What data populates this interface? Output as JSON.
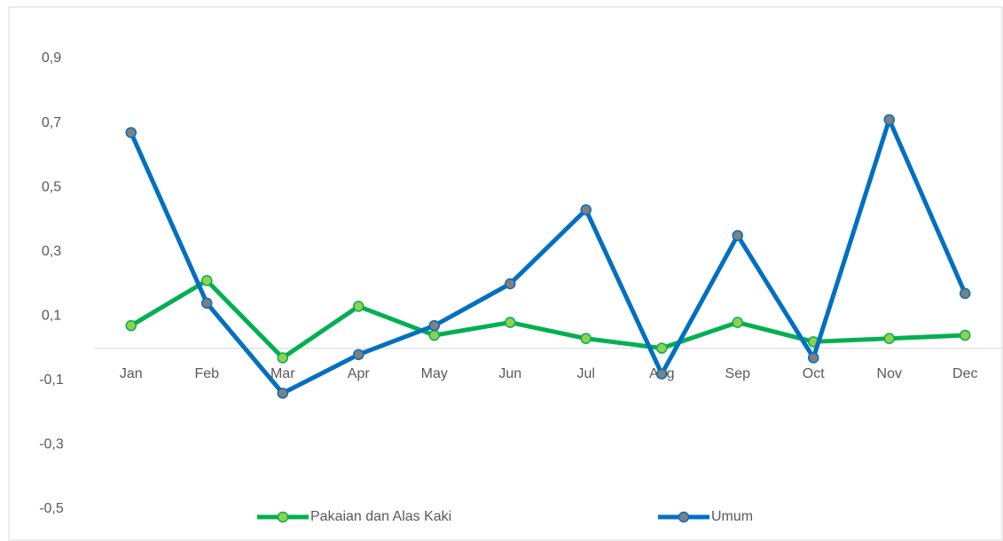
{
  "chart_data": {
    "type": "line",
    "categories": [
      "Jan",
      "Feb",
      "Mar",
      "Apr",
      "May",
      "Jun",
      "Jul",
      "Aug",
      "Sep",
      "Oct",
      "Nov",
      "Dec"
    ],
    "series": [
      {
        "name": "Pakaian dan Alas Kaki",
        "color": "#00b050",
        "marker_color": "#92d050",
        "values": [
          0.07,
          0.21,
          -0.03,
          0.13,
          0.04,
          0.08,
          0.03,
          0.0,
          0.08,
          0.02,
          0.03,
          0.04
        ]
      },
      {
        "name": "Umum",
        "color": "#0070c0",
        "marker_color": "#7f7f7f",
        "values": [
          0.67,
          0.14,
          -0.14,
          -0.02,
          0.07,
          0.2,
          0.43,
          -0.08,
          0.35,
          -0.03,
          0.71,
          0.17
        ]
      }
    ],
    "ylim": [
      -0.5,
      0.9
    ],
    "yticks": [
      {
        "value": -0.5,
        "label": "-0,5"
      },
      {
        "value": -0.3,
        "label": "-0,3"
      },
      {
        "value": -0.1,
        "label": "-0,1"
      },
      {
        "value": 0.1,
        "label": "0,1"
      },
      {
        "value": 0.3,
        "label": "0,3"
      },
      {
        "value": 0.5,
        "label": "0,5"
      },
      {
        "value": 0.7,
        "label": "0,7"
      },
      {
        "value": 0.9,
        "label": "0,9"
      }
    ],
    "legend": "bottom"
  }
}
